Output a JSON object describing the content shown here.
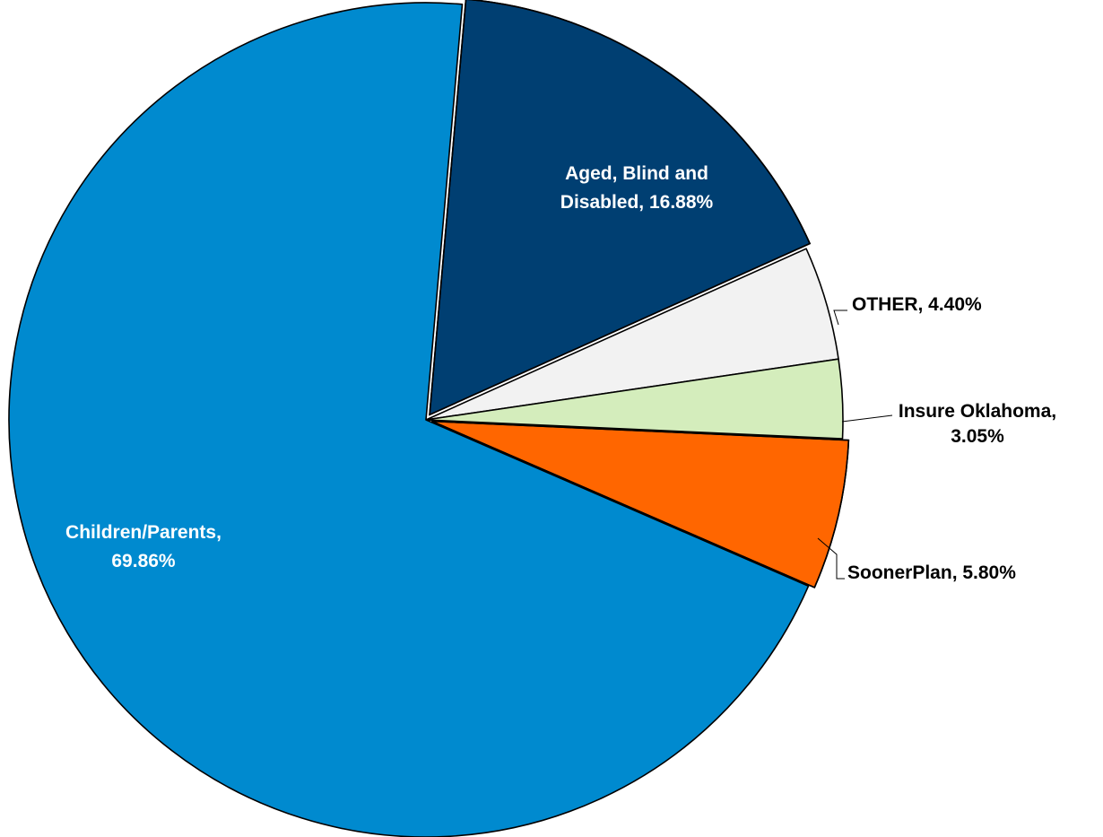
{
  "chart_data": {
    "type": "pie",
    "title": "",
    "slices": [
      {
        "name": "Aged, Blind and Disabled",
        "value": 16.88,
        "label_lines": [
          "Aged, Blind and",
          "Disabled, 16.88%"
        ],
        "color": "#003F72",
        "label_color": "#ffffff",
        "exploded": true
      },
      {
        "name": "OTHER",
        "value": 4.4,
        "label_lines": [
          "OTHER, 4.40%"
        ],
        "color": "#F2F2F2",
        "label_color": "#000000",
        "exploded": false
      },
      {
        "name": "Insure Oklahoma",
        "value": 3.05,
        "label_lines": [
          "Insure Oklahoma,",
          "3.05%"
        ],
        "color": "#D4EDBC",
        "label_color": "#000000",
        "exploded": false
      },
      {
        "name": "SoonerPlan",
        "value": 5.8,
        "label_lines": [
          "SoonerPlan, 5.80%"
        ],
        "color": "#FF6600",
        "label_color": "#000000",
        "exploded": true
      },
      {
        "name": "Children/Parents",
        "value": 69.86,
        "label_lines": [
          "Children/Parents,",
          "69.86%"
        ],
        "color": "#008ACF",
        "label_color": "#ffffff",
        "exploded": false
      }
    ],
    "start_angle_deg": 5,
    "direction": "clockwise",
    "legend": "none"
  }
}
